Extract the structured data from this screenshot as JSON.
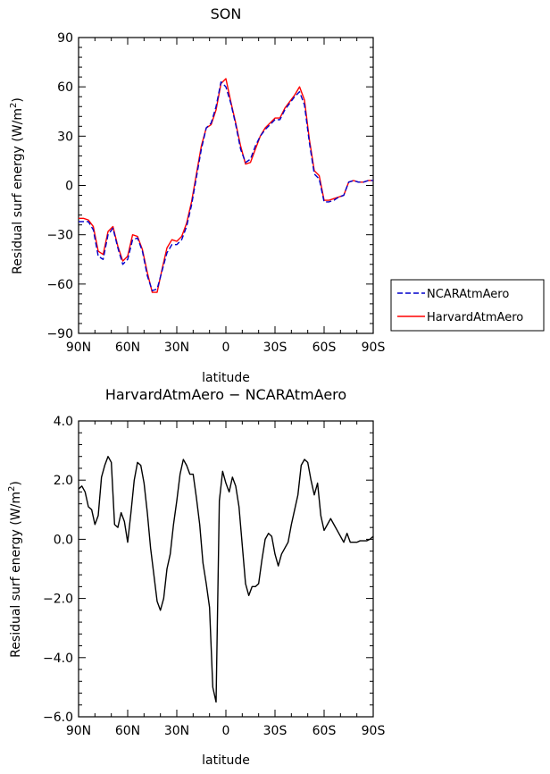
{
  "chart_data": [
    {
      "type": "line",
      "title": "SON",
      "xlabel": "latitude",
      "ylabel": "Residual surf energy (W/m",
      "ylabel_sup": "2",
      "ylabel_close": ")",
      "xlim": [
        90,
        -90
      ],
      "ylim": [
        -90,
        90
      ],
      "x_tick_values": [
        90,
        60,
        30,
        0,
        -30,
        -60,
        -90
      ],
      "x_tick_labels": [
        "90N",
        "60N",
        "30N",
        "0",
        "30S",
        "60S",
        "90S"
      ],
      "y_tick_values": [
        90,
        60,
        30,
        0,
        -30,
        -60,
        -90
      ],
      "y_tick_labels": [
        "90",
        "60",
        "30",
        "0",
        "−30",
        "−60",
        "−90"
      ],
      "legend": {
        "position": "right"
      },
      "series": [
        {
          "name": "NCARAtmAero",
          "color": "#0000cc",
          "dash": "dashed",
          "x": [
            90,
            87,
            84,
            81,
            78,
            75,
            72,
            69,
            66,
            63,
            60,
            57,
            54,
            51,
            48,
            45,
            42,
            39,
            36,
            33,
            30,
            27,
            24,
            21,
            18,
            15,
            12,
            9,
            6,
            3,
            0,
            -3,
            -6,
            -9,
            -12,
            -15,
            -18,
            -21,
            -24,
            -27,
            -30,
            -33,
            -36,
            -39,
            -42,
            -45,
            -48,
            -51,
            -54,
            -57,
            -60,
            -63,
            -66,
            -69,
            -72,
            -75,
            -78,
            -81,
            -84,
            -87,
            -90
          ],
          "values": [
            -22,
            -22,
            -22,
            -27,
            -43,
            -45,
            -30,
            -26,
            -38,
            -48,
            -45,
            -33,
            -32,
            -40,
            -55,
            -64,
            -63,
            -52,
            -41,
            -36,
            -36,
            -33,
            -25,
            -12,
            5,
            22,
            35,
            38,
            48,
            63,
            60,
            50,
            37,
            22,
            14,
            16,
            24,
            30,
            34,
            37,
            40,
            40,
            46,
            50,
            54,
            57,
            49,
            26,
            7,
            4,
            -10,
            -10,
            -9,
            -7,
            -6,
            2,
            3,
            2,
            2,
            3,
            3
          ]
        },
        {
          "name": "HarvardAtmAero",
          "color": "#ff0000",
          "dash": "solid",
          "x": [
            90,
            87,
            84,
            81,
            78,
            75,
            72,
            69,
            66,
            63,
            60,
            57,
            54,
            51,
            48,
            45,
            42,
            39,
            36,
            33,
            30,
            27,
            24,
            21,
            18,
            15,
            12,
            9,
            6,
            3,
            0,
            -3,
            -6,
            -9,
            -12,
            -15,
            -18,
            -21,
            -24,
            -27,
            -30,
            -33,
            -36,
            -39,
            -42,
            -45,
            -48,
            -51,
            -54,
            -57,
            -60,
            -63,
            -66,
            -69,
            -72,
            -75,
            -78,
            -81,
            -84,
            -87,
            -90
          ],
          "values": [
            -20,
            -20,
            -21,
            -25,
            -40,
            -42,
            -28,
            -25,
            -37,
            -46,
            -43,
            -30,
            -31,
            -39,
            -53,
            -65,
            -65,
            -51,
            -38,
            -33,
            -34,
            -31,
            -23,
            -10,
            7,
            24,
            35,
            37,
            46,
            62,
            65,
            51,
            38,
            24,
            13,
            14,
            22,
            30,
            35,
            38,
            41,
            41,
            47,
            51,
            55,
            60,
            52,
            28,
            9,
            6,
            -9,
            -9,
            -8,
            -7,
            -6,
            2,
            3,
            2,
            2,
            3,
            3
          ]
        }
      ]
    },
    {
      "type": "line",
      "title": "HarvardAtmAero − NCARAtmAero",
      "xlabel": "latitude",
      "ylabel": "Residual surf energy (W/m",
      "ylabel_sup": "2",
      "ylabel_close": ")",
      "xlim": [
        90,
        -90
      ],
      "ylim": [
        -6,
        4
      ],
      "x_tick_values": [
        90,
        60,
        30,
        0,
        -30,
        -60,
        -90
      ],
      "x_tick_labels": [
        "90N",
        "60N",
        "30N",
        "0",
        "30S",
        "60S",
        "90S"
      ],
      "y_tick_values": [
        4,
        2,
        0,
        -2,
        -4,
        -6
      ],
      "y_tick_labels": [
        "4.0",
        "2.0",
        "0.0",
        "−2.0",
        "−4.0",
        "−6.0"
      ],
      "series": [
        {
          "color": "#000000",
          "dash": "solid",
          "x": [
            90,
            88,
            86,
            84,
            82,
            80,
            78,
            76,
            74,
            72,
            70,
            68,
            66,
            64,
            62,
            60,
            58,
            56,
            54,
            52,
            50,
            48,
            46,
            44,
            42,
            40,
            38,
            36,
            34,
            32,
            30,
            28,
            26,
            24,
            22,
            20,
            18,
            16,
            14,
            12,
            10,
            8,
            6,
            4,
            2,
            0,
            -2,
            -4,
            -6,
            -8,
            -10,
            -12,
            -14,
            -16,
            -18,
            -20,
            -22,
            -24,
            -26,
            -28,
            -30,
            -32,
            -34,
            -36,
            -38,
            -40,
            -42,
            -44,
            -46,
            -48,
            -50,
            -52,
            -54,
            -56,
            -58,
            -60,
            -62,
            -64,
            -66,
            -68,
            -70,
            -72,
            -74,
            -76,
            -78,
            -80,
            -82,
            -84,
            -86,
            -88,
            -90
          ],
          "values": [
            1.7,
            1.8,
            1.6,
            1.1,
            1.0,
            0.5,
            0.8,
            2.1,
            2.5,
            2.8,
            2.6,
            0.5,
            0.4,
            0.9,
            0.6,
            -0.1,
            0.9,
            2.0,
            2.6,
            2.5,
            1.9,
            0.9,
            -0.3,
            -1.2,
            -2.1,
            -2.4,
            -2.0,
            -1.0,
            -0.5,
            0.5,
            1.3,
            2.2,
            2.7,
            2.5,
            2.2,
            2.2,
            1.4,
            0.5,
            -0.8,
            -1.5,
            -2.3,
            -5.0,
            -5.5,
            1.3,
            2.3,
            1.9,
            1.6,
            2.1,
            1.8,
            1.1,
            -0.2,
            -1.5,
            -1.9,
            -1.6,
            -1.6,
            -1.5,
            -0.7,
            0.0,
            0.2,
            0.1,
            -0.5,
            -0.9,
            -0.5,
            -0.3,
            -0.1,
            0.5,
            1.0,
            1.5,
            2.5,
            2.7,
            2.6,
            2.0,
            1.5,
            1.9,
            0.8,
            0.3,
            0.5,
            0.7,
            0.5,
            0.3,
            0.1,
            -0.1,
            0.2,
            -0.1,
            -0.1,
            -0.1,
            -0.05,
            -0.05,
            -0.05,
            0.0,
            0.1
          ]
        }
      ]
    }
  ]
}
